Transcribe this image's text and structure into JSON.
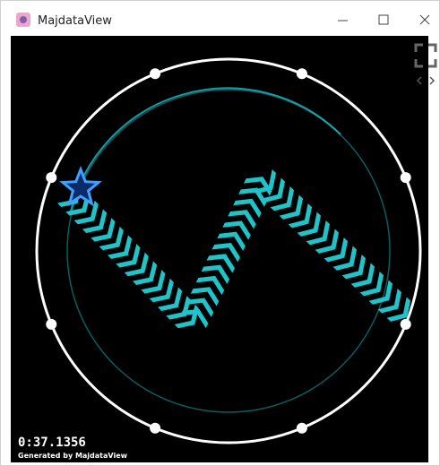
{
  "window": {
    "title": "MajdataView"
  },
  "overlay": {
    "time": "0:37.1356",
    "credit": "Generated by MajdataView"
  }
}
